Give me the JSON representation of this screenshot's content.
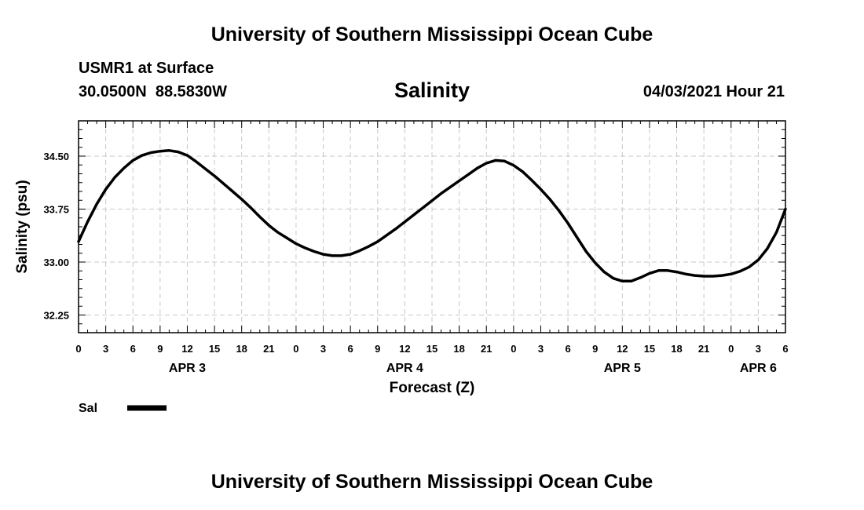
{
  "page": {
    "title_top": "University of Southern Mississippi Ocean Cube",
    "title_bottom": "University of Southern Mississippi Ocean Cube",
    "station": "USMR1 at Surface",
    "coords": "30.0500N  88.5830W",
    "variable": "Salinity",
    "datetime": "04/03/2021 Hour 21"
  },
  "chart_data": {
    "type": "line",
    "title": "Salinity",
    "xlabel": "Forecast (Z)",
    "ylabel": "Salinity (psu)",
    "xlim": [
      0,
      78
    ],
    "ylim": [
      32.0,
      35.0
    ],
    "yticks": [
      32.25,
      33.0,
      33.75,
      34.5
    ],
    "ytick_labels": [
      "32.25",
      "33.00",
      "33.75",
      "34.50"
    ],
    "xticks": [
      0,
      3,
      6,
      9,
      12,
      15,
      18,
      21,
      24,
      27,
      30,
      33,
      36,
      39,
      42,
      45,
      48,
      51,
      54,
      57,
      60,
      63,
      66,
      69,
      72,
      75,
      78
    ],
    "xtick_labels": [
      "0",
      "3",
      "6",
      "9",
      "12",
      "15",
      "18",
      "21",
      "0",
      "3",
      "6",
      "9",
      "12",
      "15",
      "18",
      "21",
      "0",
      "3",
      "6",
      "9",
      "12",
      "15",
      "18",
      "21",
      "0",
      "3",
      "6"
    ],
    "date_labels": [
      {
        "x": 12,
        "label": "APR 3"
      },
      {
        "x": 36,
        "label": "APR 4"
      },
      {
        "x": 60,
        "label": "APR 5"
      },
      {
        "x": 75,
        "label": "APR 6"
      }
    ],
    "grid": true,
    "legend": [
      {
        "name": "Sal",
        "color": "#000000"
      }
    ],
    "series": [
      {
        "name": "Sal",
        "color": "#000000",
        "x": [
          0,
          1,
          2,
          3,
          4,
          5,
          6,
          7,
          8,
          9,
          10,
          11,
          12,
          13,
          14,
          15,
          16,
          17,
          18,
          19,
          20,
          21,
          22,
          23,
          24,
          25,
          26,
          27,
          28,
          29,
          30,
          31,
          32,
          33,
          34,
          35,
          36,
          37,
          38,
          39,
          40,
          41,
          42,
          43,
          44,
          45,
          46,
          47,
          48,
          49,
          50,
          51,
          52,
          53,
          54,
          55,
          56,
          57,
          58,
          59,
          60,
          61,
          62,
          63,
          64,
          65,
          66,
          67,
          68,
          69,
          70,
          71,
          72,
          73,
          74,
          75,
          76,
          77,
          78
        ],
        "values": [
          33.29,
          33.57,
          33.82,
          34.03,
          34.2,
          34.33,
          34.44,
          34.51,
          34.55,
          34.57,
          34.58,
          34.56,
          34.51,
          34.42,
          34.32,
          34.22,
          34.11,
          34.0,
          33.89,
          33.77,
          33.64,
          33.52,
          33.42,
          33.34,
          33.26,
          33.2,
          33.15,
          33.11,
          33.09,
          33.09,
          33.11,
          33.16,
          33.22,
          33.29,
          33.38,
          33.47,
          33.57,
          33.67,
          33.77,
          33.87,
          33.97,
          34.06,
          34.15,
          34.24,
          34.33,
          34.4,
          34.44,
          34.43,
          34.37,
          34.28,
          34.16,
          34.03,
          33.89,
          33.73,
          33.55,
          33.35,
          33.15,
          32.99,
          32.86,
          32.77,
          32.73,
          32.73,
          32.78,
          32.84,
          32.88,
          32.88,
          32.86,
          32.83,
          32.81,
          32.8,
          32.8,
          32.81,
          32.83,
          32.87,
          32.93,
          33.03,
          33.19,
          33.42,
          33.75
        ]
      }
    ]
  }
}
